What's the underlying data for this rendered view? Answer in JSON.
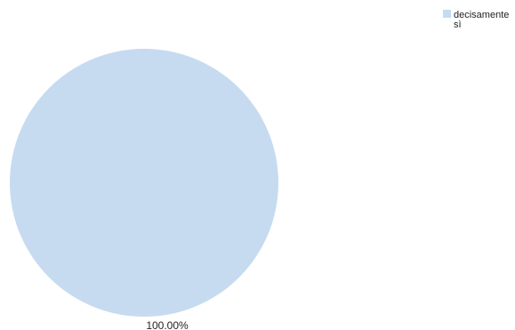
{
  "chart_data": {
    "type": "pie",
    "categories": [
      "decisamente sì"
    ],
    "values": [
      100.0
    ],
    "data_labels": [
      "100.00%"
    ],
    "colors": [
      "#c6dbf0"
    ],
    "legend": {
      "entries": [
        "decisamente sì"
      ],
      "placement": "top-right"
    }
  }
}
